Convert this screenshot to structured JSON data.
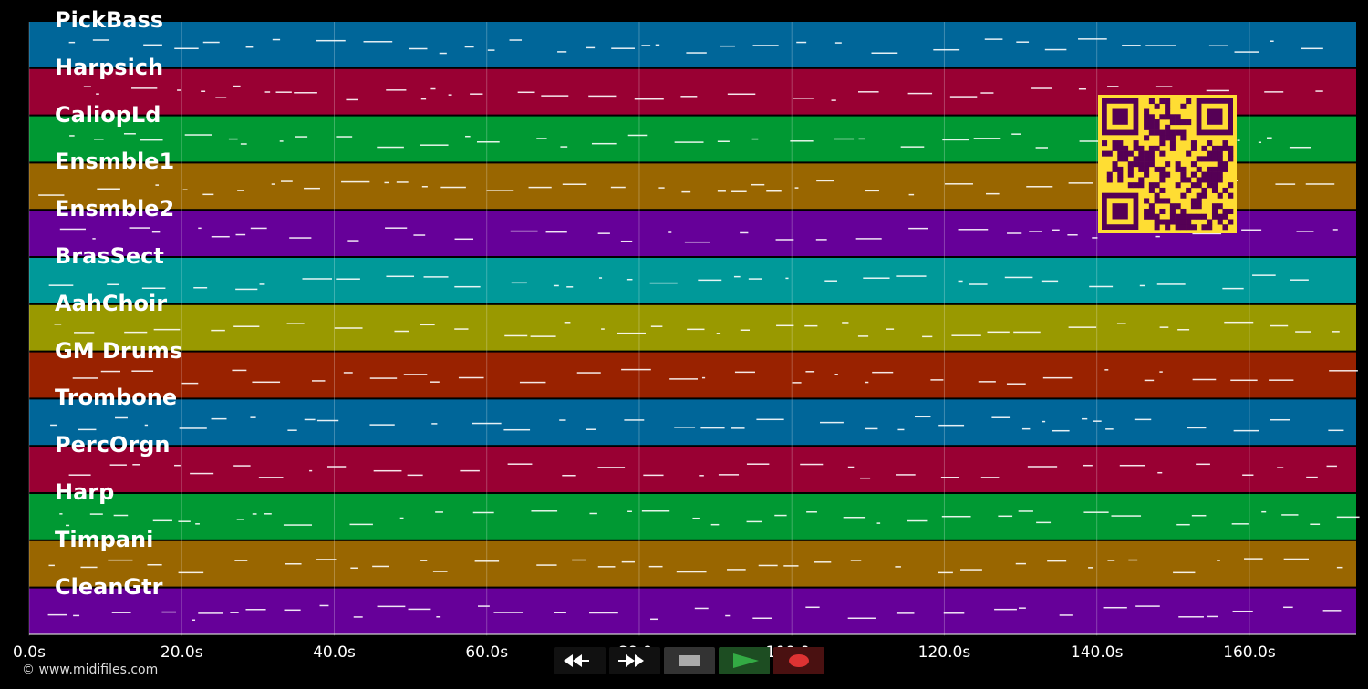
{
  "tracks": [
    {
      "label": "PickBass",
      "color": "#006699"
    },
    {
      "label": "Harpsich",
      "color": "#990033"
    },
    {
      "label": "CaliopLd",
      "color": "#009933"
    },
    {
      "label": "Ensmble1",
      "color": "#996600"
    },
    {
      "label": "Ensmble2",
      "color": "#660099"
    },
    {
      "label": "BrasSect",
      "color": "#009999"
    },
    {
      "label": "AahChoir",
      "color": "#999900"
    },
    {
      "label": "GM Drums",
      "color": "#992200"
    },
    {
      "label": "Trombone",
      "color": "#006699"
    },
    {
      "label": "PercOrgn",
      "color": "#990033"
    },
    {
      "label": "Harp",
      "color": "#009933"
    },
    {
      "label": "Timpani",
      "color": "#996600"
    },
    {
      "label": "CleanGtr",
      "color": "#660099"
    }
  ],
  "timeline": {
    "ticks": [
      "0.0s",
      "20.0s",
      "40.0s",
      "60.0s",
      "80.0s",
      "100.0s",
      "120.0s",
      "140.0s",
      "160.0s"
    ],
    "tick_seconds": [
      0,
      20,
      40,
      60,
      80,
      100,
      120,
      140,
      160
    ],
    "duration_seconds": 174
  },
  "transport": {
    "rewind_icon": "rewind-icon",
    "forward_icon": "fast-forward-icon",
    "stop_icon": "stop-icon",
    "play_icon": "play-icon",
    "record_icon": "record-icon",
    "play_color": "#33aa44",
    "record_color": "#dd3333"
  },
  "qr_color": "#ffdd33",
  "copyright": "© www.midifiles.com"
}
